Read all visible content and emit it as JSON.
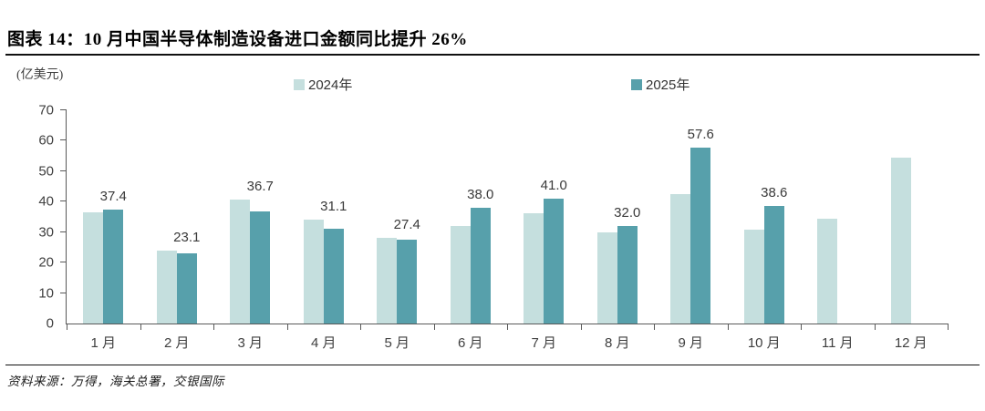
{
  "page": {
    "title": "图表 14：10 月中国半导体制造设备进口金额同比提升 26%",
    "source": "资料来源：万得，海关总署，交银国际"
  },
  "chart_data": {
    "type": "bar",
    "title": "图表 14：10 月中国半导体制造设备进口金额同比提升 26%",
    "unit_label": "(亿美元)",
    "categories": [
      "1 月",
      "2 月",
      "3 月",
      "4 月",
      "5 月",
      "6 月",
      "7 月",
      "8 月",
      "9 月",
      "10 月",
      "11 月",
      "12 月"
    ],
    "series": [
      {
        "name": "2024年",
        "color": "#c5dfde",
        "values": [
          36.5,
          24.0,
          40.8,
          34.1,
          28.0,
          32.0,
          36.2,
          29.8,
          42.6,
          30.8,
          34.4,
          54.4
        ],
        "data_labels": false
      },
      {
        "name": "2025年",
        "color": "#57a0ab",
        "values": [
          37.4,
          23.1,
          36.7,
          31.1,
          27.4,
          38.0,
          41.0,
          32.0,
          57.6,
          38.6,
          null,
          null
        ],
        "data_labels": true
      }
    ],
    "ylim": [
      0,
      70
    ],
    "ytick_step": 10,
    "grid": false,
    "legend_position": "top",
    "axis_color": "#595959",
    "label_color": "#3a3a3a"
  }
}
